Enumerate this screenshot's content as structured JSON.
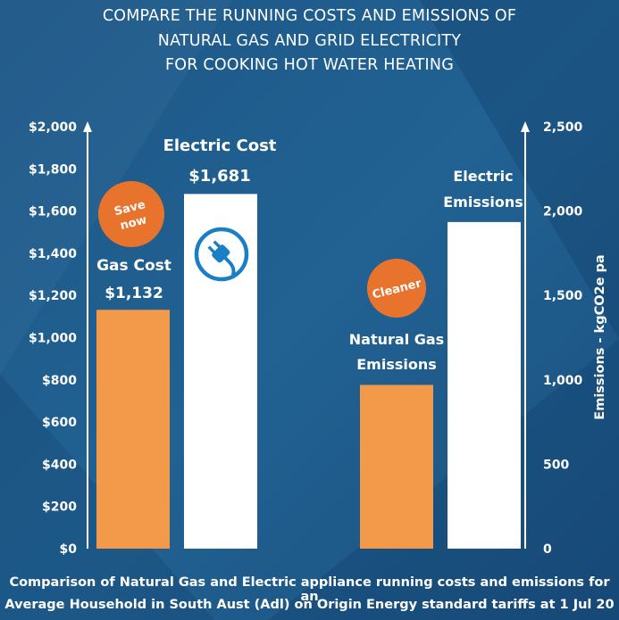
{
  "title": {
    "line1": "COMPARE THE RUNNING COSTS AND EMISSIONS OF",
    "line2": "NATURAL GAS AND GRID ELECTRICITY",
    "line3": "FOR COOKING  HOT WATER  HEATING"
  },
  "caption": {
    "line1": "Comparison of Natural Gas and Electric appliance running costs and emissions for an",
    "line2": "Average Household in South Aust (Adl) on Origin Energy standard tariffs at 1 Jul 20"
  },
  "colors": {
    "background": "#1f5c8c",
    "gas": "#f2994a",
    "electric": "#ffffff",
    "badge": "#e8732c",
    "plug_icon": "#1a7fc4"
  },
  "chart_data": {
    "type": "bar",
    "left_axis": {
      "ticks": [
        "$0",
        "$200",
        "$400",
        "$600",
        "$800",
        "$1,000",
        "$1,200",
        "$1,400",
        "$1,600",
        "$1,800",
        "$2,000"
      ],
      "ylim": [
        0,
        2000
      ]
    },
    "right_axis": {
      "label": "Emissions - kgCO2e  pa",
      "ticks": [
        "0",
        "500",
        "1,000",
        "1,500",
        "2,000",
        "2,500"
      ],
      "ylim": [
        0,
        2500
      ]
    },
    "bars": [
      {
        "id": "gas-cost",
        "axis": "left",
        "value": 1132,
        "label_line1": "Gas Cost",
        "label_line2": "$1,132",
        "color": "#f2994a"
      },
      {
        "id": "electric-cost",
        "axis": "left",
        "value": 1681,
        "label_line1": "Electric Cost",
        "label_line2": "$1,681",
        "color": "#ffffff"
      },
      {
        "id": "gas-emissions",
        "axis": "right",
        "value": 970,
        "label_line1": "Natural Gas",
        "label_line2": "Emissions",
        "color": "#f2994a"
      },
      {
        "id": "electric-emissions",
        "axis": "right",
        "value": 1935,
        "label_line1": "Electric",
        "label_line2": "Emissions",
        "color": "#ffffff"
      }
    ],
    "badges": [
      {
        "id": "save-now",
        "line1": "Save",
        "line2": "now"
      },
      {
        "id": "cleaner",
        "line1": "Cleaner",
        "line2": ""
      }
    ],
    "grid": false,
    "legend": "none"
  }
}
